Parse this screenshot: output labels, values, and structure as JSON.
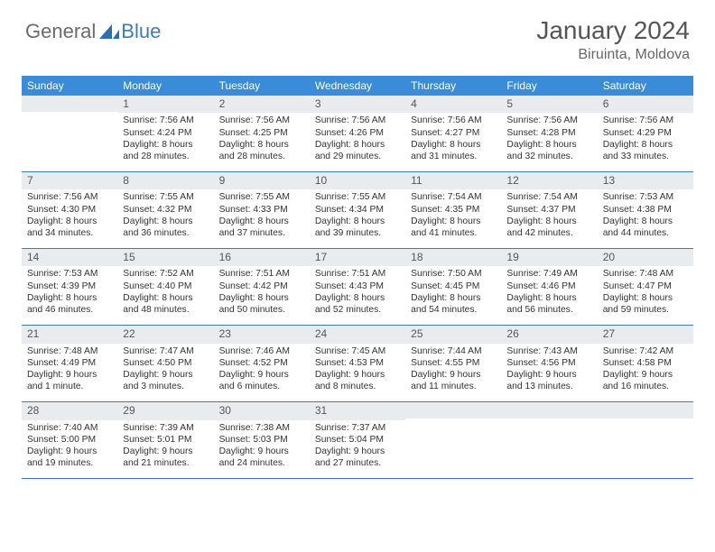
{
  "brand": {
    "part1": "General",
    "part2": "Blue"
  },
  "title": "January 2024",
  "location": "Biruinta, Moldova",
  "header_color": "#3a8bd8",
  "accent_color": "#3a7bbf",
  "daynum_bg": "#e8ecef",
  "text_color": "#333333",
  "day_names": [
    "Sunday",
    "Monday",
    "Tuesday",
    "Wednesday",
    "Thursday",
    "Friday",
    "Saturday"
  ],
  "weeks": [
    [
      {
        "n": "",
        "sunrise": "",
        "sunset": "",
        "daylight": ""
      },
      {
        "n": "1",
        "sunrise": "Sunrise: 7:56 AM",
        "sunset": "Sunset: 4:24 PM",
        "daylight": "Daylight: 8 hours and 28 minutes."
      },
      {
        "n": "2",
        "sunrise": "Sunrise: 7:56 AM",
        "sunset": "Sunset: 4:25 PM",
        "daylight": "Daylight: 8 hours and 28 minutes."
      },
      {
        "n": "3",
        "sunrise": "Sunrise: 7:56 AM",
        "sunset": "Sunset: 4:26 PM",
        "daylight": "Daylight: 8 hours and 29 minutes."
      },
      {
        "n": "4",
        "sunrise": "Sunrise: 7:56 AM",
        "sunset": "Sunset: 4:27 PM",
        "daylight": "Daylight: 8 hours and 31 minutes."
      },
      {
        "n": "5",
        "sunrise": "Sunrise: 7:56 AM",
        "sunset": "Sunset: 4:28 PM",
        "daylight": "Daylight: 8 hours and 32 minutes."
      },
      {
        "n": "6",
        "sunrise": "Sunrise: 7:56 AM",
        "sunset": "Sunset: 4:29 PM",
        "daylight": "Daylight: 8 hours and 33 minutes."
      }
    ],
    [
      {
        "n": "7",
        "sunrise": "Sunrise: 7:56 AM",
        "sunset": "Sunset: 4:30 PM",
        "daylight": "Daylight: 8 hours and 34 minutes."
      },
      {
        "n": "8",
        "sunrise": "Sunrise: 7:55 AM",
        "sunset": "Sunset: 4:32 PM",
        "daylight": "Daylight: 8 hours and 36 minutes."
      },
      {
        "n": "9",
        "sunrise": "Sunrise: 7:55 AM",
        "sunset": "Sunset: 4:33 PM",
        "daylight": "Daylight: 8 hours and 37 minutes."
      },
      {
        "n": "10",
        "sunrise": "Sunrise: 7:55 AM",
        "sunset": "Sunset: 4:34 PM",
        "daylight": "Daylight: 8 hours and 39 minutes."
      },
      {
        "n": "11",
        "sunrise": "Sunrise: 7:54 AM",
        "sunset": "Sunset: 4:35 PM",
        "daylight": "Daylight: 8 hours and 41 minutes."
      },
      {
        "n": "12",
        "sunrise": "Sunrise: 7:54 AM",
        "sunset": "Sunset: 4:37 PM",
        "daylight": "Daylight: 8 hours and 42 minutes."
      },
      {
        "n": "13",
        "sunrise": "Sunrise: 7:53 AM",
        "sunset": "Sunset: 4:38 PM",
        "daylight": "Daylight: 8 hours and 44 minutes."
      }
    ],
    [
      {
        "n": "14",
        "sunrise": "Sunrise: 7:53 AM",
        "sunset": "Sunset: 4:39 PM",
        "daylight": "Daylight: 8 hours and 46 minutes."
      },
      {
        "n": "15",
        "sunrise": "Sunrise: 7:52 AM",
        "sunset": "Sunset: 4:40 PM",
        "daylight": "Daylight: 8 hours and 48 minutes."
      },
      {
        "n": "16",
        "sunrise": "Sunrise: 7:51 AM",
        "sunset": "Sunset: 4:42 PM",
        "daylight": "Daylight: 8 hours and 50 minutes."
      },
      {
        "n": "17",
        "sunrise": "Sunrise: 7:51 AM",
        "sunset": "Sunset: 4:43 PM",
        "daylight": "Daylight: 8 hours and 52 minutes."
      },
      {
        "n": "18",
        "sunrise": "Sunrise: 7:50 AM",
        "sunset": "Sunset: 4:45 PM",
        "daylight": "Daylight: 8 hours and 54 minutes."
      },
      {
        "n": "19",
        "sunrise": "Sunrise: 7:49 AM",
        "sunset": "Sunset: 4:46 PM",
        "daylight": "Daylight: 8 hours and 56 minutes."
      },
      {
        "n": "20",
        "sunrise": "Sunrise: 7:48 AM",
        "sunset": "Sunset: 4:47 PM",
        "daylight": "Daylight: 8 hours and 59 minutes."
      }
    ],
    [
      {
        "n": "21",
        "sunrise": "Sunrise: 7:48 AM",
        "sunset": "Sunset: 4:49 PM",
        "daylight": "Daylight: 9 hours and 1 minute."
      },
      {
        "n": "22",
        "sunrise": "Sunrise: 7:47 AM",
        "sunset": "Sunset: 4:50 PM",
        "daylight": "Daylight: 9 hours and 3 minutes."
      },
      {
        "n": "23",
        "sunrise": "Sunrise: 7:46 AM",
        "sunset": "Sunset: 4:52 PM",
        "daylight": "Daylight: 9 hours and 6 minutes."
      },
      {
        "n": "24",
        "sunrise": "Sunrise: 7:45 AM",
        "sunset": "Sunset: 4:53 PM",
        "daylight": "Daylight: 9 hours and 8 minutes."
      },
      {
        "n": "25",
        "sunrise": "Sunrise: 7:44 AM",
        "sunset": "Sunset: 4:55 PM",
        "daylight": "Daylight: 9 hours and 11 minutes."
      },
      {
        "n": "26",
        "sunrise": "Sunrise: 7:43 AM",
        "sunset": "Sunset: 4:56 PM",
        "daylight": "Daylight: 9 hours and 13 minutes."
      },
      {
        "n": "27",
        "sunrise": "Sunrise: 7:42 AM",
        "sunset": "Sunset: 4:58 PM",
        "daylight": "Daylight: 9 hours and 16 minutes."
      }
    ],
    [
      {
        "n": "28",
        "sunrise": "Sunrise: 7:40 AM",
        "sunset": "Sunset: 5:00 PM",
        "daylight": "Daylight: 9 hours and 19 minutes."
      },
      {
        "n": "29",
        "sunrise": "Sunrise: 7:39 AM",
        "sunset": "Sunset: 5:01 PM",
        "daylight": "Daylight: 9 hours and 21 minutes."
      },
      {
        "n": "30",
        "sunrise": "Sunrise: 7:38 AM",
        "sunset": "Sunset: 5:03 PM",
        "daylight": "Daylight: 9 hours and 24 minutes."
      },
      {
        "n": "31",
        "sunrise": "Sunrise: 7:37 AM",
        "sunset": "Sunset: 5:04 PM",
        "daylight": "Daylight: 9 hours and 27 minutes."
      },
      {
        "n": "",
        "sunrise": "",
        "sunset": "",
        "daylight": ""
      },
      {
        "n": "",
        "sunrise": "",
        "sunset": "",
        "daylight": ""
      },
      {
        "n": "",
        "sunrise": "",
        "sunset": "",
        "daylight": ""
      }
    ]
  ]
}
